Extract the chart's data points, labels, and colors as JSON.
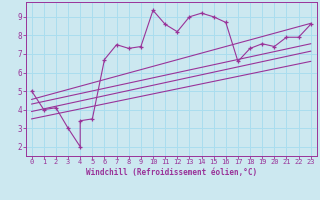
{
  "title": "",
  "xlabel": "Windchill (Refroidissement éolien,°C)",
  "ylabel": "",
  "bg_color": "#cce8f0",
  "line_color": "#993399",
  "grid_color": "#aaddee",
  "xlim": [
    -0.5,
    23.5
  ],
  "ylim": [
    1.5,
    9.8
  ],
  "xticks": [
    0,
    1,
    2,
    3,
    4,
    5,
    6,
    7,
    8,
    9,
    10,
    11,
    12,
    13,
    14,
    15,
    16,
    17,
    18,
    19,
    20,
    21,
    22,
    23
  ],
  "yticks": [
    2,
    3,
    4,
    5,
    6,
    7,
    8,
    9
  ],
  "scatter_x": [
    0,
    1,
    2,
    3,
    4,
    4,
    5,
    6,
    7,
    8,
    9,
    10,
    11,
    12,
    13,
    14,
    15,
    16,
    17,
    18,
    19,
    20,
    21,
    22,
    23
  ],
  "scatter_y": [
    5,
    4,
    4.1,
    3.0,
    2.0,
    3.4,
    3.5,
    6.7,
    7.5,
    7.3,
    7.4,
    9.35,
    8.6,
    8.2,
    9.0,
    9.2,
    9.0,
    8.7,
    6.6,
    7.3,
    7.55,
    7.4,
    7.9,
    7.9,
    8.6
  ],
  "reg_lines": [
    {
      "x0": 0,
      "y0": 3.5,
      "x1": 23,
      "y1": 6.6
    },
    {
      "x0": 0,
      "y0": 3.9,
      "x1": 23,
      "y1": 7.15
    },
    {
      "x0": 0,
      "y0": 4.3,
      "x1": 23,
      "y1": 7.55
    },
    {
      "x0": 0,
      "y0": 4.55,
      "x1": 23,
      "y1": 8.65
    }
  ]
}
